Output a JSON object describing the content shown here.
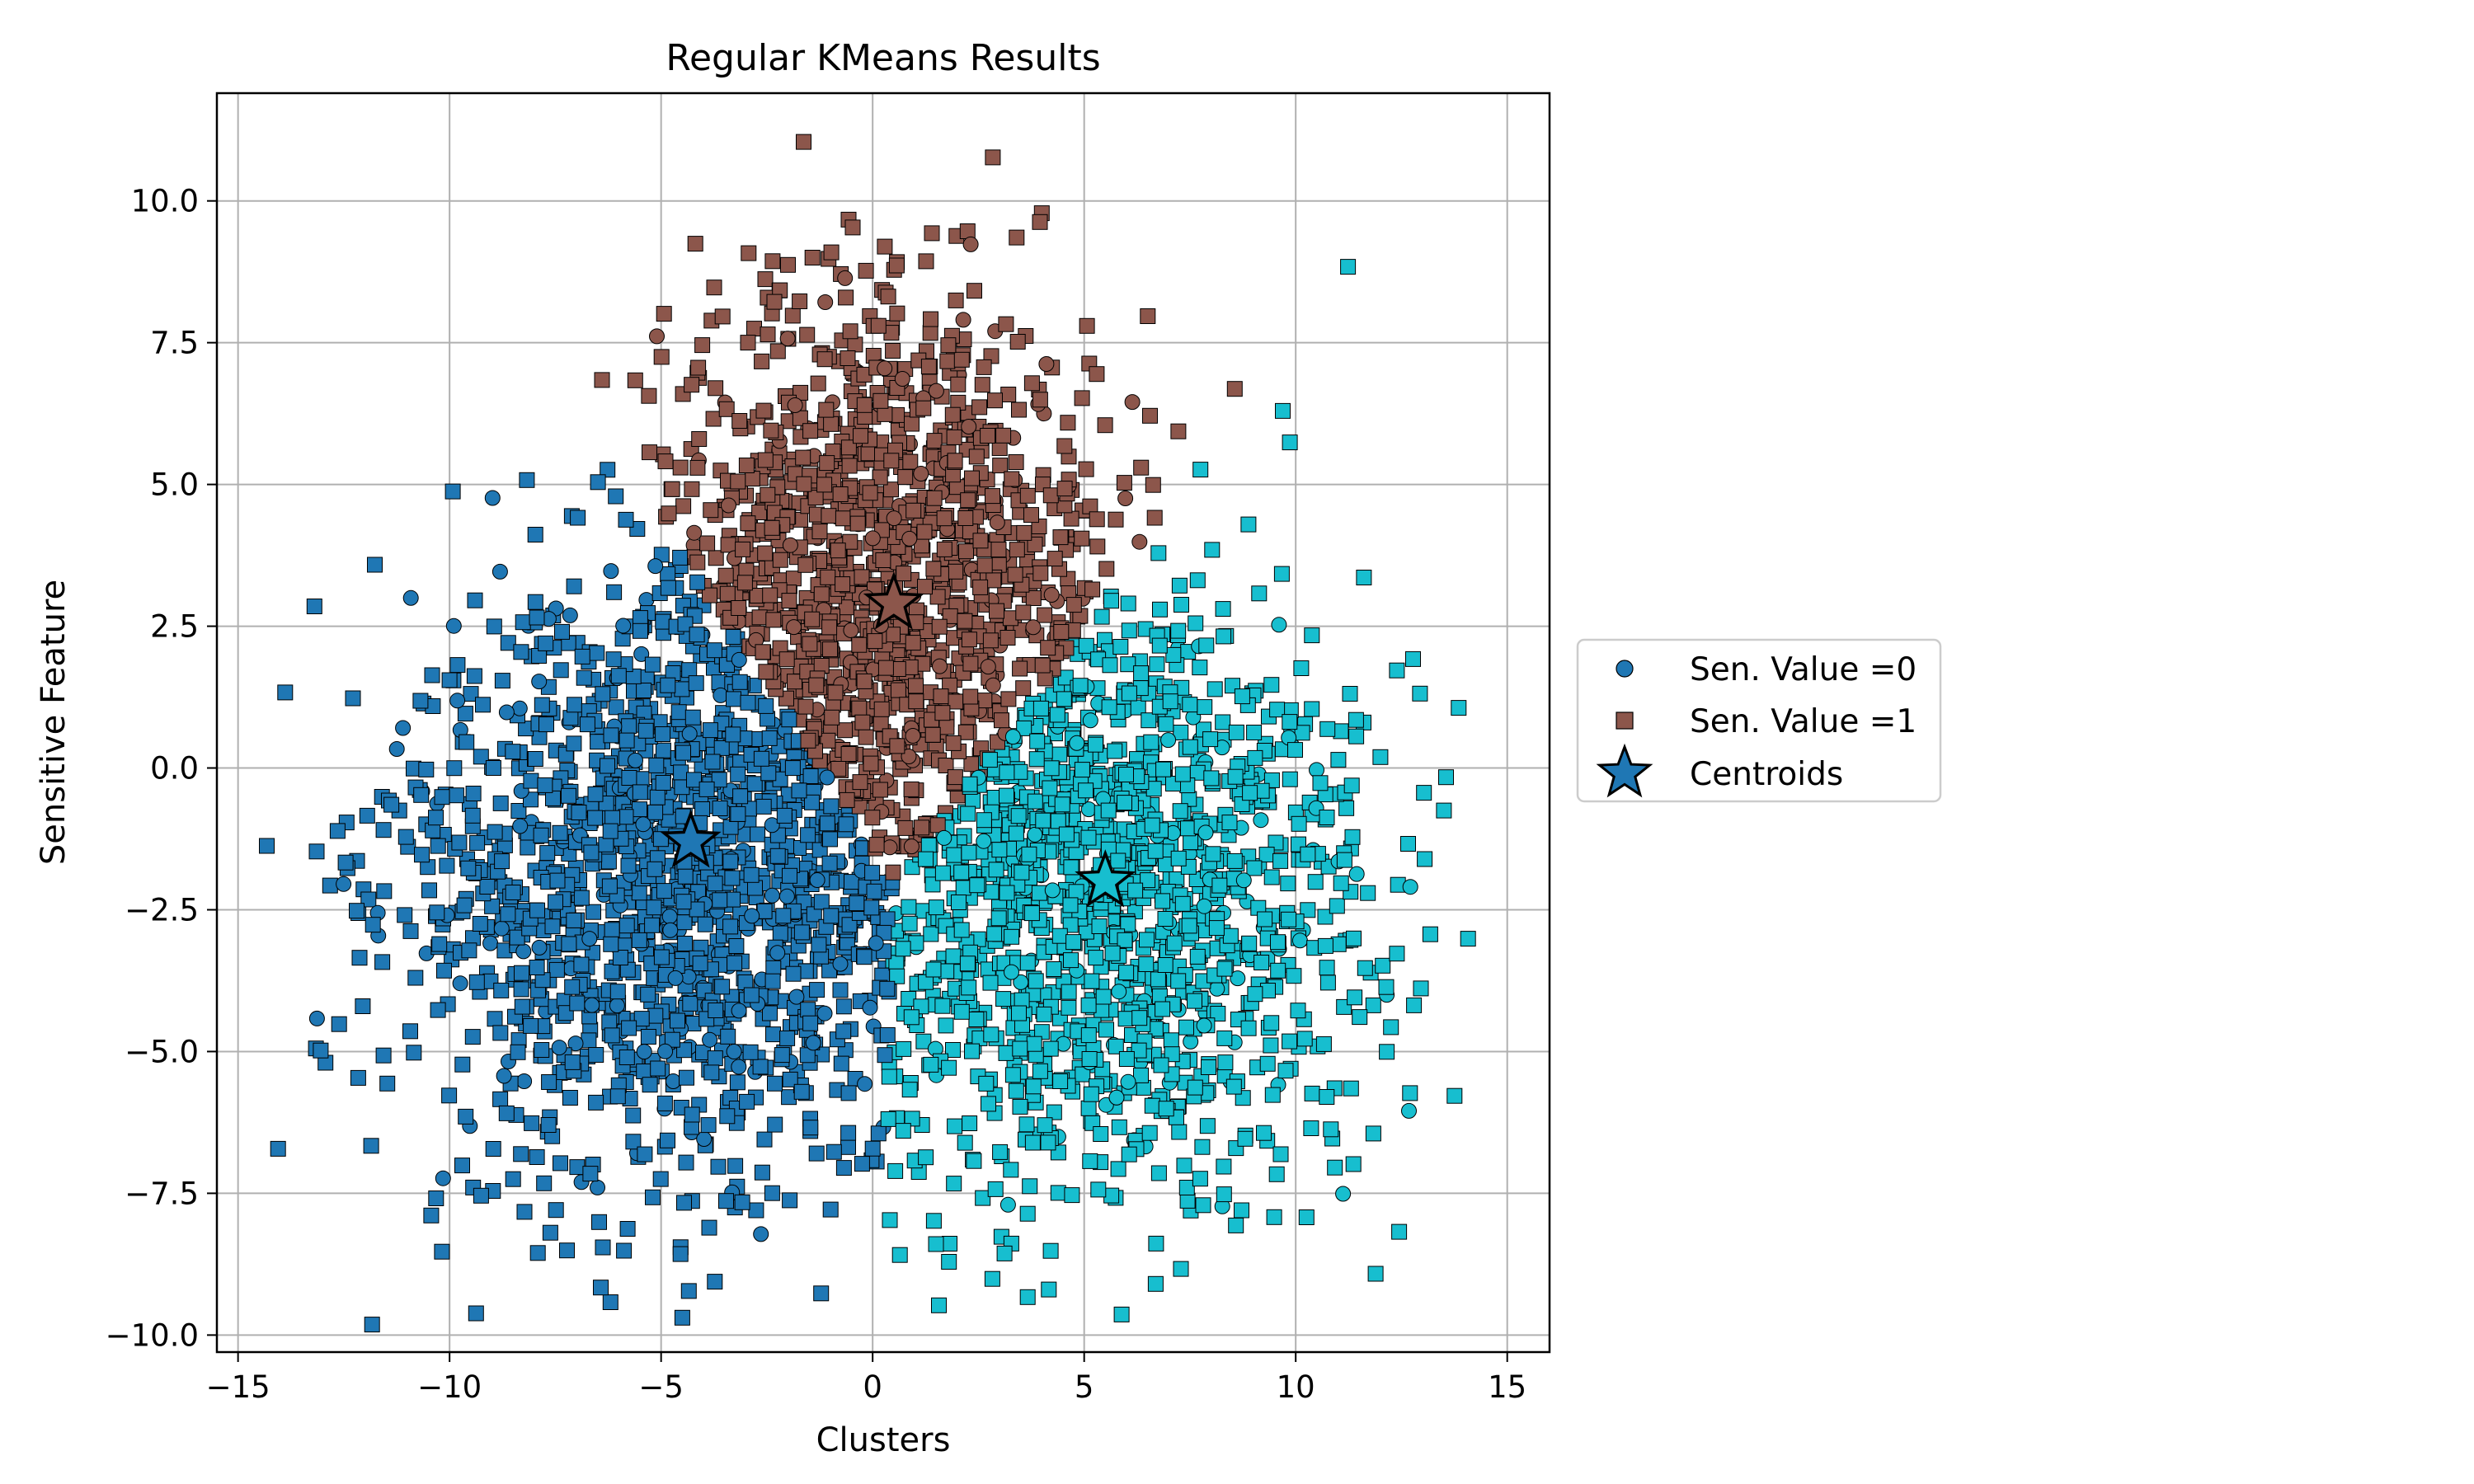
{
  "chart_data": {
    "type": "scatter",
    "title": "Regular KMeans Results",
    "xlabel": "Clusters",
    "ylabel": "Sensitive Feature",
    "xlim": [
      -15.5,
      16
    ],
    "ylim": [
      -10.3,
      11.9
    ],
    "xticks": [
      -15,
      -10,
      -5,
      0,
      5,
      10,
      15
    ],
    "yticks": [
      -10.0,
      -7.5,
      -5.0,
      -2.5,
      0.0,
      2.5,
      5.0,
      7.5,
      10.0
    ],
    "xtick_labels": [
      "−15",
      "−10",
      "−5",
      "0",
      "5",
      "10",
      "15"
    ],
    "ytick_labels": [
      "−10.0",
      "−7.5",
      "−5.0",
      "−2.5",
      "0.0",
      "2.5",
      "5.0",
      "7.5",
      "10.0"
    ],
    "grid": true,
    "legend_position": "center-right outside",
    "legend": [
      {
        "label": "Sen. Value =0",
        "marker": "circle"
      },
      {
        "label": "Sen. Value =1",
        "marker": "square"
      },
      {
        "label": "Centroids",
        "marker": "star"
      }
    ],
    "clusters": [
      {
        "color": "#1f77b4",
        "center": [
          -5.0,
          -2.0
        ],
        "spread": [
          3.2,
          2.7
        ],
        "n_points": 1500
      },
      {
        "color": "#8c564b",
        "center": [
          0.3,
          3.8
        ],
        "spread": [
          2.5,
          2.4
        ],
        "n_points": 1100
      },
      {
        "color": "#17becf",
        "center": [
          5.5,
          -2.3
        ],
        "spread": [
          3.0,
          2.6
        ],
        "n_points": 1400
      }
    ],
    "centroids": [
      {
        "x": -4.3,
        "y": -1.3,
        "color": "#1f77b4"
      },
      {
        "x": 0.5,
        "y": 2.9,
        "color": "#8c564b"
      },
      {
        "x": 5.5,
        "y": -2.0,
        "color": "#17becf"
      }
    ]
  }
}
